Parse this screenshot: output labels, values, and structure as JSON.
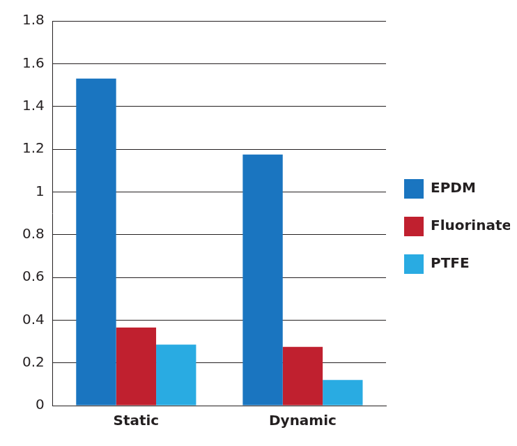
{
  "chart_data": {
    "type": "bar",
    "categories": [
      "Static",
      "Dynamic"
    ],
    "series": [
      {
        "name": "EPDM",
        "color": "#1a75c0",
        "values": [
          1.53,
          1.175
        ]
      },
      {
        "name": "Fluorinated EPDM",
        "color": "#c0202f",
        "values": [
          0.365,
          0.275
        ]
      },
      {
        "name": "PTFE",
        "color": "#29abe2",
        "values": [
          0.285,
          0.12
        ]
      }
    ],
    "ylim": [
      0,
      1.8
    ],
    "yticks": [
      0,
      0.2,
      0.4,
      0.6,
      0.8,
      1,
      1.2,
      1.4,
      1.6,
      1.8
    ],
    "grid": true,
    "legend": "right"
  }
}
